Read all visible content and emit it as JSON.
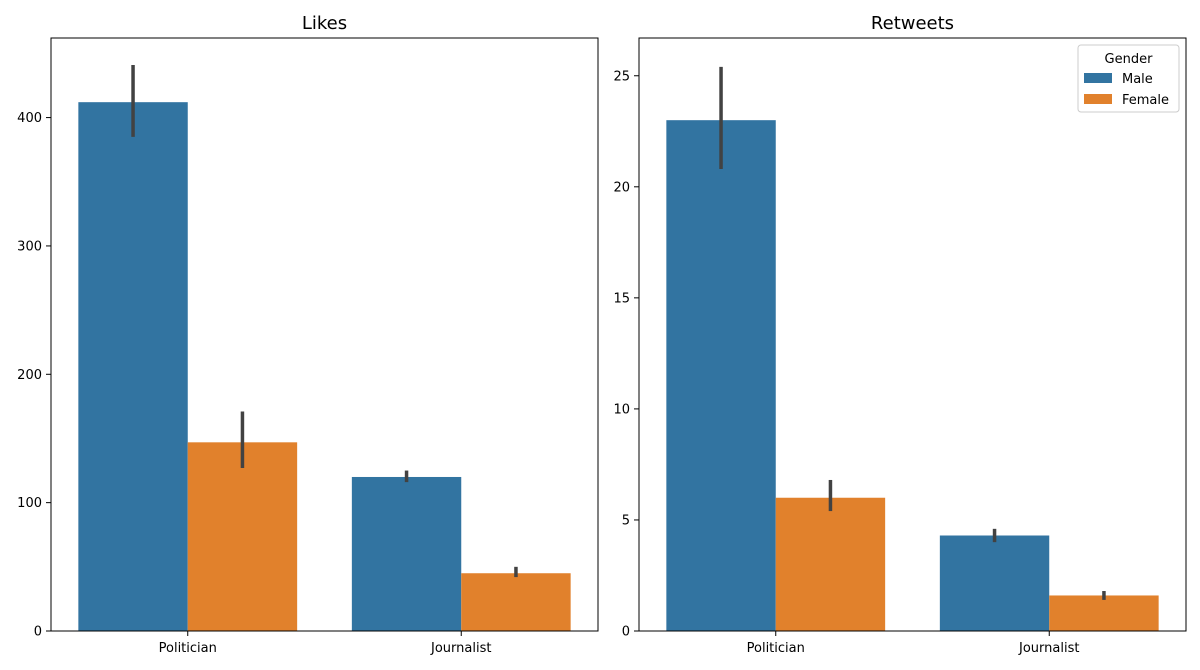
{
  "chart_data": [
    {
      "type": "bar",
      "title": "Likes",
      "xlabel": "",
      "ylabel": "",
      "categories": [
        "Politician",
        "Journalist"
      ],
      "ylim": [
        0,
        462
      ],
      "yticks": [
        0,
        100,
        200,
        300,
        400
      ],
      "legend": null,
      "series": [
        {
          "name": "Male",
          "color": "#3274a1",
          "values": [
            412,
            120
          ],
          "error_low": [
            385,
            116
          ],
          "error_high": [
            441,
            125
          ]
        },
        {
          "name": "Female",
          "color": "#e1812c",
          "values": [
            147,
            45
          ],
          "error_low": [
            127,
            42
          ],
          "error_high": [
            171,
            50
          ]
        }
      ]
    },
    {
      "type": "bar",
      "title": "Retweets",
      "xlabel": "",
      "ylabel": "",
      "categories": [
        "Politician",
        "Journalist"
      ],
      "ylim": [
        0,
        26.7
      ],
      "yticks": [
        0,
        5,
        10,
        15,
        20,
        25
      ],
      "legend": {
        "title": "Gender",
        "position": "top-right",
        "entries": [
          "Male",
          "Female"
        ]
      },
      "series": [
        {
          "name": "Male",
          "color": "#3274a1",
          "values": [
            23.0,
            4.3
          ],
          "error_low": [
            20.8,
            4.0
          ],
          "error_high": [
            25.4,
            4.6
          ]
        },
        {
          "name": "Female",
          "color": "#e1812c",
          "values": [
            6.0,
            1.6
          ],
          "error_low": [
            5.4,
            1.4
          ],
          "error_high": [
            6.8,
            1.8
          ]
        }
      ]
    }
  ]
}
